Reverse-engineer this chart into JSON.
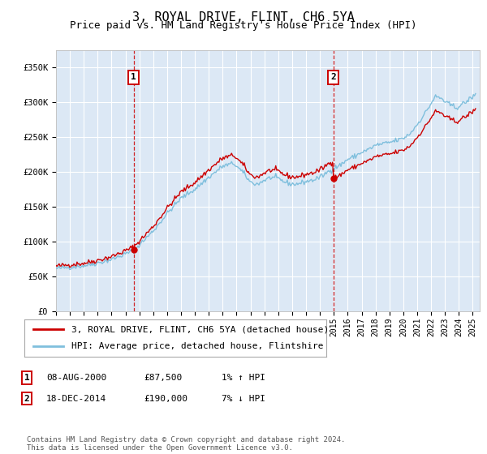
{
  "title": "3, ROYAL DRIVE, FLINT, CH6 5YA",
  "subtitle": "Price paid vs. HM Land Registry's House Price Index (HPI)",
  "ylabel_ticks": [
    "£0",
    "£50K",
    "£100K",
    "£150K",
    "£200K",
    "£250K",
    "£300K",
    "£350K"
  ],
  "ytick_values": [
    0,
    50000,
    100000,
    150000,
    200000,
    250000,
    300000,
    350000
  ],
  "ylim": [
    0,
    375000
  ],
  "xlim_start": 1995.0,
  "xlim_end": 2025.5,
  "sale1_date": 2000.6,
  "sale1_price": 87500,
  "sale1_label": "1",
  "sale2_date": 2014.96,
  "sale2_price": 190000,
  "sale2_label": "2",
  "legend_line1": "3, ROYAL DRIVE, FLINT, CH6 5YA (detached house)",
  "legend_line2": "HPI: Average price, detached house, Flintshire",
  "table_row1": [
    "1",
    "08-AUG-2000",
    "£87,500",
    "1% ↑ HPI"
  ],
  "table_row2": [
    "2",
    "18-DEC-2014",
    "£190,000",
    "7% ↓ HPI"
  ],
  "footer": "Contains HM Land Registry data © Crown copyright and database right 2024.\nThis data is licensed under the Open Government Licence v3.0.",
  "hpi_color": "#7fbfdd",
  "sale_color": "#cc0000",
  "vline_color": "#cc0000",
  "bg_color": "#dce8f5",
  "grid_color": "#ffffff",
  "title_fontsize": 11,
  "subtitle_fontsize": 9,
  "tick_fontsize": 7.5,
  "legend_fontsize": 8,
  "table_fontsize": 8,
  "footer_fontsize": 6.5
}
